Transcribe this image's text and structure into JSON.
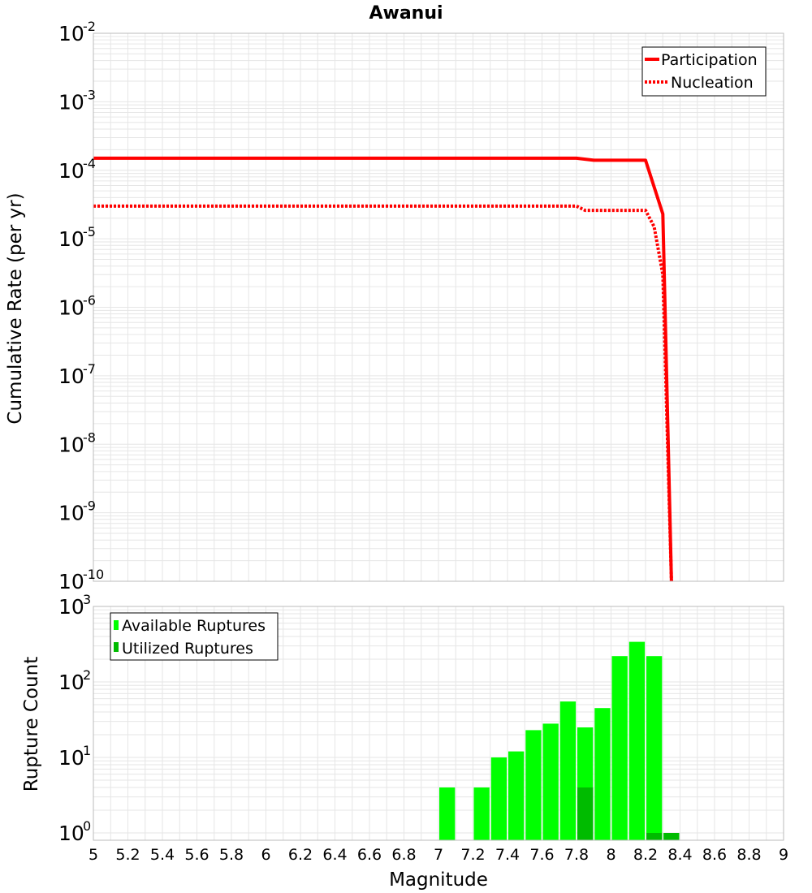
{
  "title": "Awanui",
  "colors": {
    "participation": "#ff0000",
    "nucleation": "#ff0000",
    "available": "#00ff00",
    "utilized": "#00bb00",
    "grid": "#e6e6e6",
    "frame": "#bbbbbb"
  },
  "chart_data": [
    {
      "type": "line",
      "scale": "log",
      "title": "Awanui",
      "xlabel": "",
      "ylabel": "Cumulative Rate (per yr)",
      "xlim": [
        5,
        9
      ],
      "ylim_exponents": [
        -10,
        -2
      ],
      "ytick_labels": [
        {
          "base": "10",
          "exp": "-2"
        },
        {
          "base": "10",
          "exp": "-3"
        },
        {
          "base": "10",
          "exp": "-4"
        },
        {
          "base": "10",
          "exp": "-5"
        },
        {
          "base": "10",
          "exp": "-6"
        },
        {
          "base": "10",
          "exp": "-7"
        },
        {
          "base": "10",
          "exp": "-8"
        },
        {
          "base": "10",
          "exp": "-9"
        },
        {
          "base": "10",
          "exp": "-10"
        }
      ],
      "legend": {
        "position": "top-right",
        "entries": [
          "Participation",
          "Nucleation"
        ]
      },
      "series": [
        {
          "name": "Participation",
          "style": "solid",
          "x": [
            5.0,
            7.8,
            7.9,
            8.2,
            8.3,
            8.35
          ],
          "y": [
            0.00015,
            0.00015,
            0.00014,
            0.00014,
            2.3e-05,
            1e-10
          ]
        },
        {
          "name": "Nucleation",
          "style": "dotted",
          "x": [
            5.0,
            7.8,
            7.85,
            8.2,
            8.25,
            8.3,
            8.35
          ],
          "y": [
            3e-05,
            3e-05,
            2.6e-05,
            2.6e-05,
            1.5e-05,
            3e-06,
            1e-10
          ]
        }
      ]
    },
    {
      "type": "bar",
      "scale": "log",
      "xlabel": "Magnitude",
      "ylabel": "Rupture Count",
      "xlim": [
        5,
        9
      ],
      "ylim": [
        0.8,
        1000
      ],
      "ytick_labels": [
        {
          "base": "10",
          "exp": "3"
        },
        {
          "base": "10",
          "exp": "2"
        },
        {
          "base": "10",
          "exp": "1"
        },
        {
          "base": "10",
          "exp": "0"
        }
      ],
      "xtick_labels": [
        "5",
        "5.2",
        "5.4",
        "5.6",
        "5.8",
        "6",
        "6.2",
        "6.4",
        "6.6",
        "6.8",
        "7",
        "7.2",
        "7.4",
        "7.6",
        "7.8",
        "8",
        "8.2",
        "8.4",
        "8.6",
        "8.8",
        "9"
      ],
      "bin_width": 0.1,
      "legend": {
        "position": "top-left",
        "entries": [
          "Available Ruptures",
          "Utilized Ruptures"
        ]
      },
      "series": [
        {
          "name": "Available Ruptures",
          "x": [
            7.05,
            7.25,
            7.35,
            7.45,
            7.55,
            7.65,
            7.75,
            7.85,
            7.95,
            8.05,
            8.15,
            8.25,
            8.35
          ],
          "values": [
            4,
            4,
            10,
            12,
            23,
            28,
            55,
            25,
            45,
            220,
            340,
            220,
            1
          ]
        },
        {
          "name": "Utilized Ruptures",
          "x": [
            7.85,
            8.25,
            8.35
          ],
          "values": [
            4,
            1,
            1
          ]
        }
      ]
    }
  ]
}
